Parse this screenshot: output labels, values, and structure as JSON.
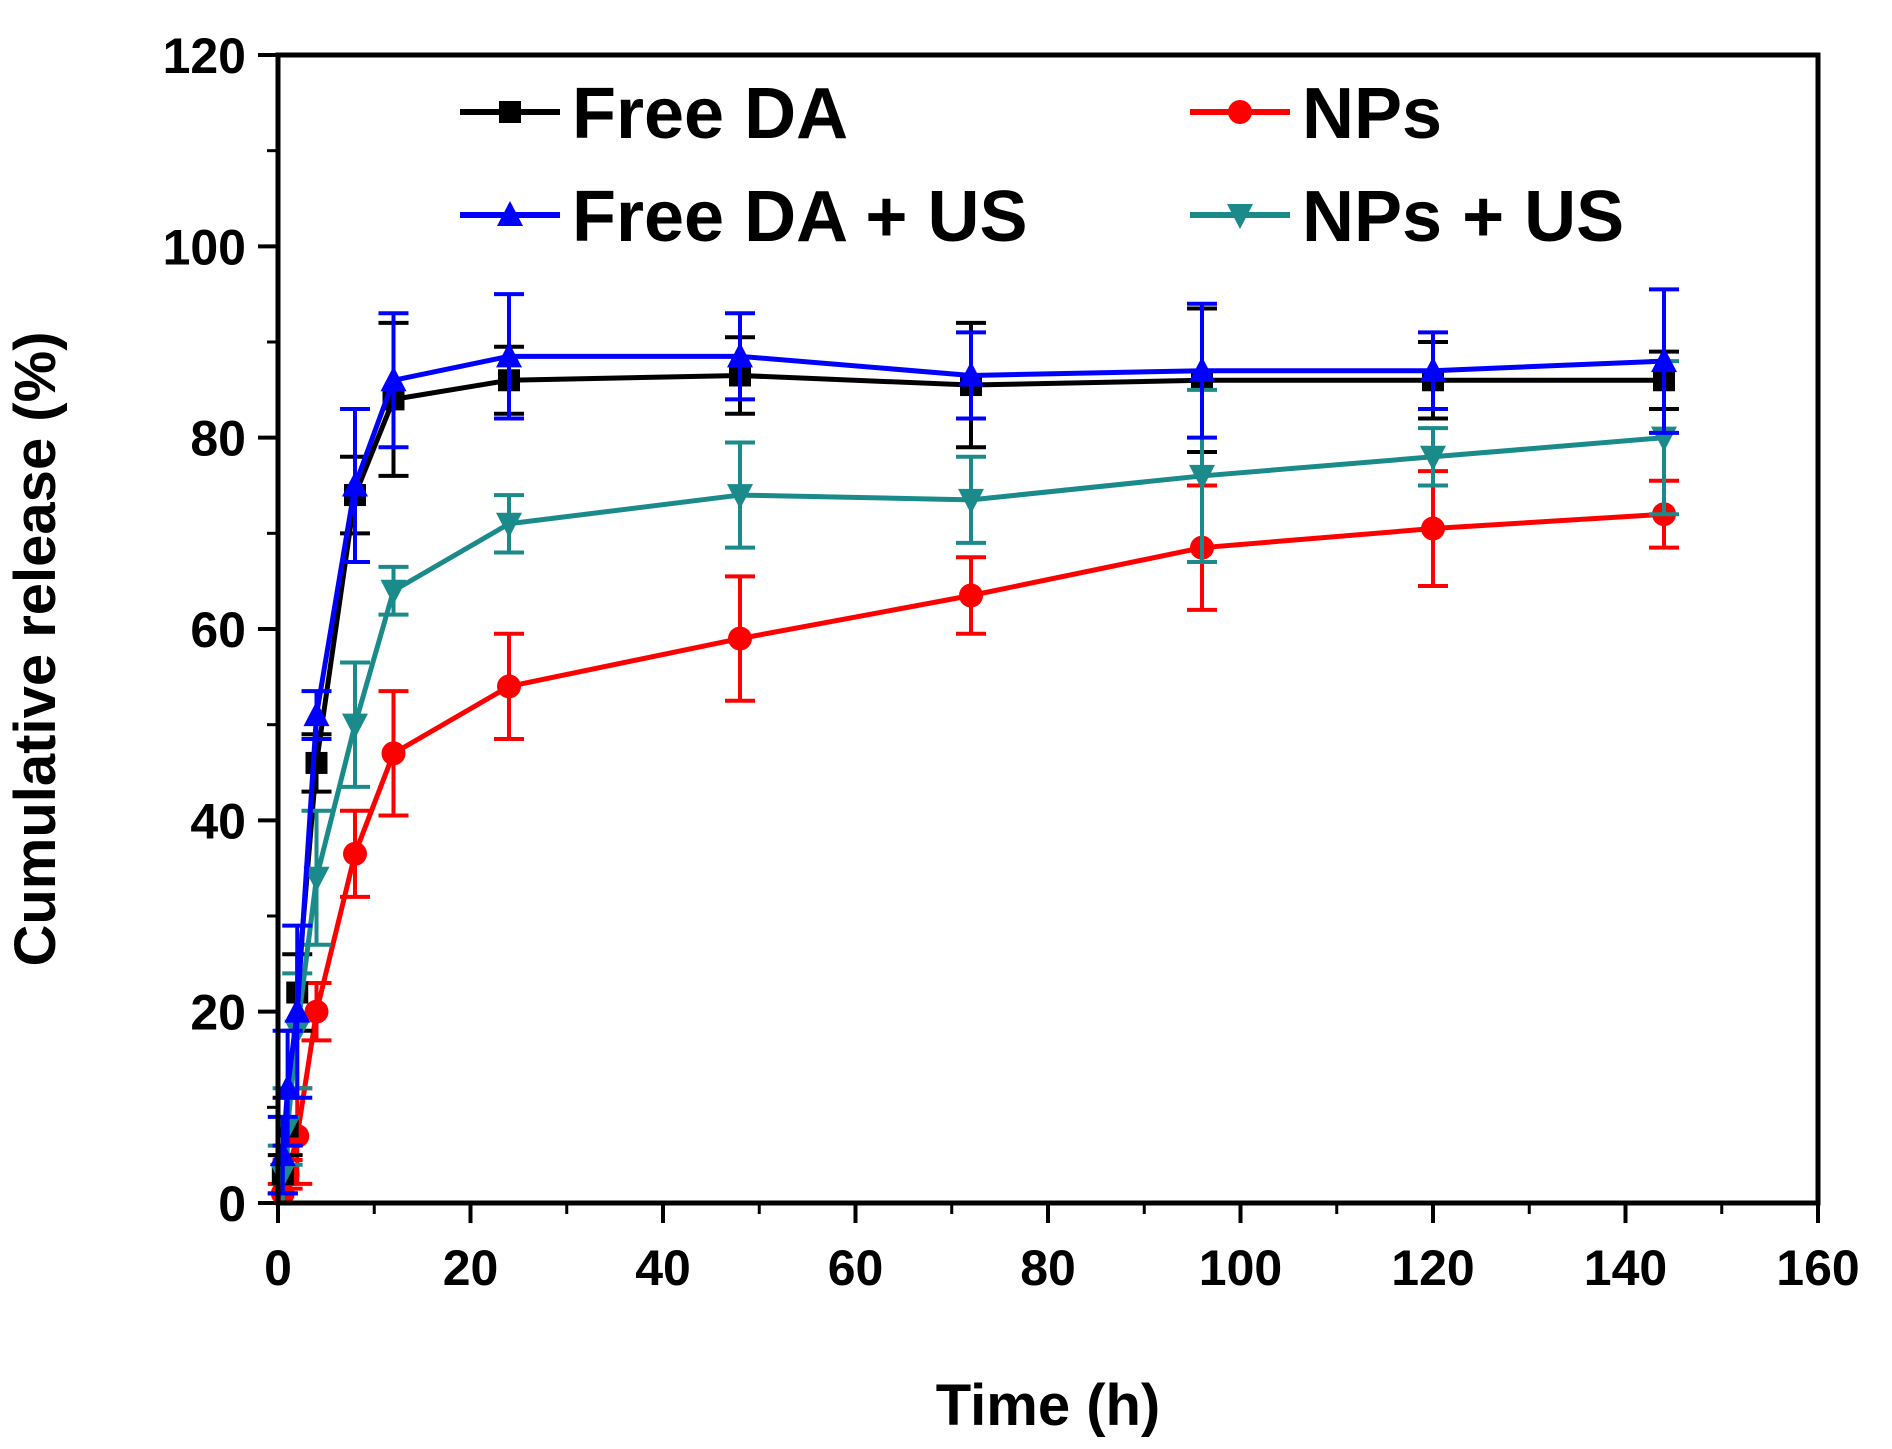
{
  "chart_data": {
    "type": "line",
    "title": "",
    "xlabel": "Time (h)",
    "ylabel": "Cumulative release (%)",
    "xlim": [
      0,
      160
    ],
    "ylim": [
      0,
      120
    ],
    "xticks": [
      "0",
      "20",
      "40",
      "60",
      "80",
      "100",
      "120",
      "140",
      "160"
    ],
    "yticks": [
      "0",
      "20",
      "40",
      "60",
      "80",
      "100",
      "120"
    ],
    "grid": false,
    "legend_position": "top",
    "series": [
      {
        "name": "Free DA",
        "color": "#000000",
        "marker": "square",
        "x": [
          0.5,
          1,
          2,
          4,
          8,
          12,
          24,
          48,
          72,
          96,
          120,
          144
        ],
        "y": [
          3,
          8,
          22,
          46,
          74,
          84,
          86,
          86.5,
          85.5,
          86,
          86,
          86
        ],
        "err": [
          2,
          3,
          4,
          3,
          4,
          8,
          3.5,
          4,
          6.5,
          7.5,
          4,
          3
        ]
      },
      {
        "name": "NPs",
        "color": "#ff0000",
        "marker": "circle",
        "x": [
          0.5,
          1,
          2,
          4,
          8,
          12,
          24,
          48,
          72,
          96,
          120,
          144
        ],
        "y": [
          1,
          3,
          7,
          20,
          36.5,
          47,
          54,
          59,
          63.5,
          68.5,
          70.5,
          72
        ],
        "err": [
          1,
          1.5,
          5,
          3,
          4.5,
          6.5,
          5.5,
          6.5,
          4,
          6.5,
          6,
          3.5
        ]
      },
      {
        "name": "Free DA + US",
        "color": "#0000ff",
        "marker": "triangle-up",
        "x": [
          0.5,
          1,
          2,
          4,
          8,
          12,
          24,
          48,
          72,
          96,
          120,
          144
        ],
        "y": [
          5,
          12,
          20,
          51,
          75,
          86,
          88.5,
          88.5,
          86.5,
          87,
          87,
          88
        ],
        "err": [
          4,
          6,
          9,
          2.5,
          8,
          7,
          6.5,
          4.5,
          4.5,
          7,
          4,
          7.5
        ]
      },
      {
        "name": "NPs + US",
        "color": "#1a8a8a",
        "marker": "triangle-down",
        "x": [
          0.5,
          1,
          2,
          4,
          8,
          12,
          24,
          48,
          72,
          96,
          120,
          144
        ],
        "y": [
          3,
          8,
          18,
          34,
          50,
          64,
          71,
          74,
          73.5,
          76,
          78,
          80
        ],
        "err": [
          3,
          4,
          6,
          7,
          6.5,
          2.5,
          3,
          5.5,
          4.5,
          9,
          3,
          8
        ]
      }
    ]
  }
}
